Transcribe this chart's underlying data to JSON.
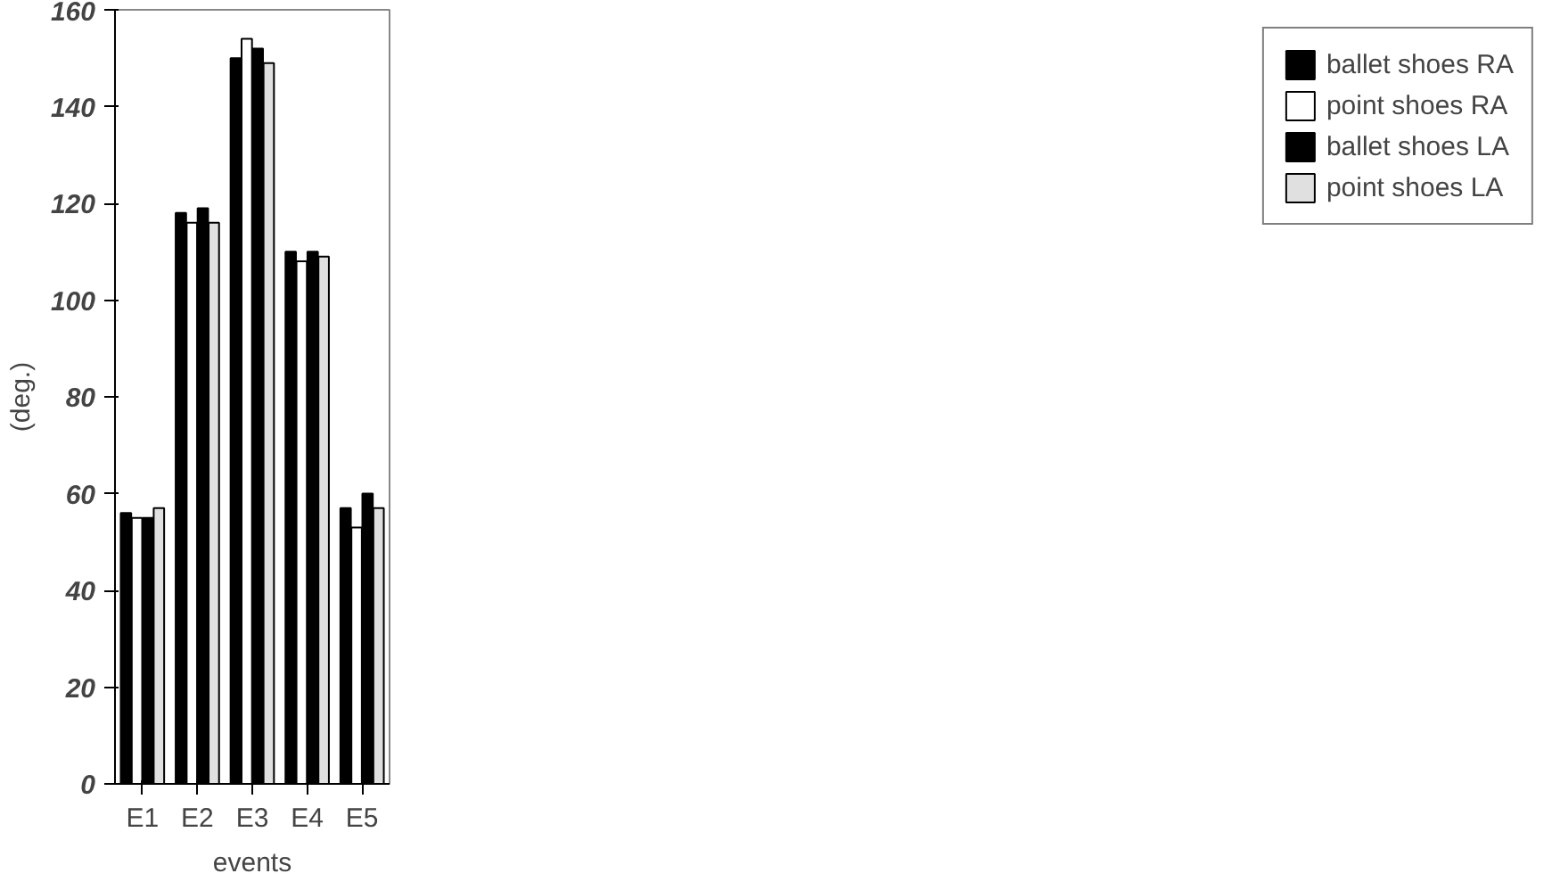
{
  "chart_data": {
    "type": "bar",
    "xlabel": "events",
    "ylabel": "(deg.)",
    "categories": [
      "E1",
      "E2",
      "E3",
      "E4",
      "E5"
    ],
    "series": [
      {
        "name": "ballet shoes RA",
        "color": "#000000",
        "values": [
          56,
          118,
          150,
          110,
          57
        ]
      },
      {
        "name": "point shoes RA",
        "color": "#ffffff",
        "values": [
          55,
          116,
          154,
          108,
          53
        ]
      },
      {
        "name": "ballet shoes LA",
        "color": "#000000",
        "values": [
          55,
          119,
          152,
          110,
          60
        ]
      },
      {
        "name": "point shoes LA",
        "color": "#e0e0e0",
        "values": [
          57,
          116,
          149,
          109,
          57
        ]
      }
    ],
    "ylim": [
      0,
      160
    ],
    "yticks": [
      0,
      20,
      40,
      60,
      80,
      100,
      120,
      140,
      160
    ],
    "legend": "right"
  }
}
